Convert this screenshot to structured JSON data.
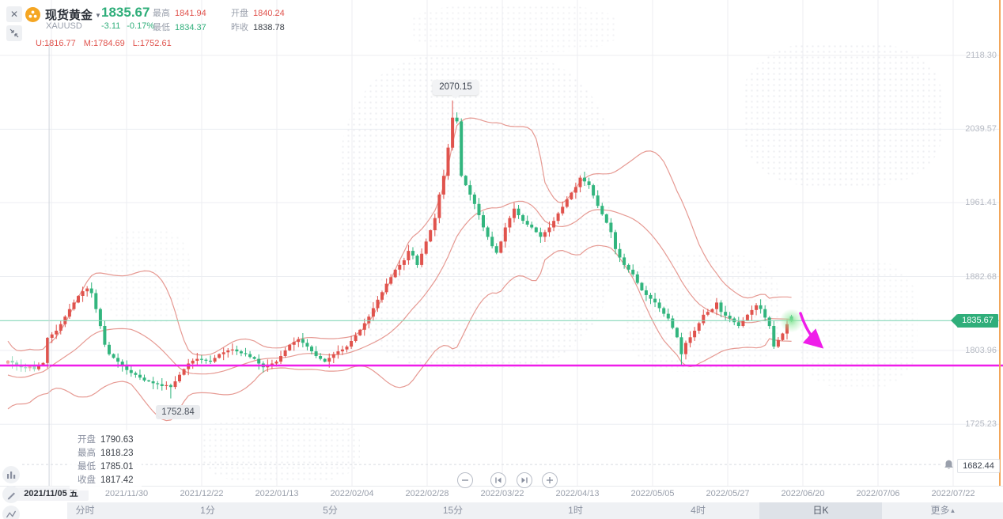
{
  "header": {
    "name": "现货黄金",
    "code": "XAUUSD",
    "price": "1835.67",
    "change": "-3.11",
    "change_pct": "-0.17%",
    "stats": [
      {
        "label": "最高",
        "value": "1841.94",
        "tone": "red"
      },
      {
        "label": "最低",
        "value": "1834.37",
        "tone": "green"
      },
      {
        "label": "开盘",
        "value": "1840.24",
        "tone": "red"
      },
      {
        "label": "昨收",
        "value": "1838.78",
        "tone": "dark"
      }
    ]
  },
  "boll": {
    "u": "U:1816.77",
    "m": "M:1784.69",
    "l": "L:1752.61"
  },
  "tooltip": {
    "rows": [
      {
        "label": "开盘",
        "value": "1790.63"
      },
      {
        "label": "最高",
        "value": "1818.23"
      },
      {
        "label": "最低",
        "value": "1785.01"
      },
      {
        "label": "收盘",
        "value": "1817.42"
      }
    ]
  },
  "price_tag": "1835.67",
  "alert_value": "1682.44",
  "annotations": {
    "high": "2070.15",
    "low": "1752.84"
  },
  "toolbar": {
    "timeframes": [
      "分时",
      "1分",
      "5分",
      "15分",
      "1时",
      "4时",
      "日K",
      "更多"
    ],
    "selected": "日K",
    "more_arrow": "▲"
  },
  "colors": {
    "up": "#e0534d",
    "down": "#32b57e",
    "band": "#e5938c",
    "accent_green": "#2fae7a",
    "magenta": "#ef1de9",
    "teal_line": "#86d7b8",
    "right_border": "#f2a65a"
  },
  "chart_data": {
    "type": "candlestick",
    "symbol": "XAUUSD",
    "period": "日K",
    "indicator": "BOLL(20,2)",
    "x_labels": [
      "2021/11/05 五",
      "2021/11/30",
      "2021/12/22",
      "2022/01/13",
      "2022/02/04",
      "2022/02/28",
      "2022/03/22",
      "2022/04/13",
      "2022/05/05",
      "2022/05/27",
      "2022/06/20",
      "2022/07/06",
      "2022/07/22"
    ],
    "y_ticks": [
      2118.3,
      2039.57,
      1961.41,
      1882.68,
      1803.96,
      1725.23
    ],
    "current_price": 1835.67,
    "alert_price": 1682.44,
    "trendline_price": 1787.9,
    "crosshair_index": 9,
    "high_point": 2070.15,
    "low_point": 1752.84,
    "pre_closes": [
      1832,
      1820,
      1806,
      1790,
      1775,
      1762,
      1752,
      1758,
      1766,
      1757,
      1750,
      1760,
      1770,
      1777,
      1784,
      1791,
      1787,
      1781,
      1786,
      1790
    ],
    "closes": [
      1793,
      1791,
      1788,
      1786,
      1785,
      1787,
      1784,
      1788,
      1790.6,
      1817.4,
      1821,
      1825,
      1832,
      1840,
      1848,
      1855,
      1862,
      1867,
      1870,
      1865,
      1848,
      1830,
      1810,
      1800,
      1796,
      1792,
      1787,
      1783,
      1780,
      1778,
      1775,
      1772,
      1771,
      1769,
      1768,
      1766,
      1767,
      1765,
      1771,
      1778,
      1784,
      1790,
      1793,
      1795,
      1794,
      1793,
      1792,
      1796,
      1800,
      1802,
      1804,
      1805,
      1803,
      1801,
      1800,
      1797,
      1795,
      1790,
      1786,
      1788,
      1790,
      1792,
      1798,
      1804,
      1810,
      1813,
      1816,
      1812,
      1808,
      1803,
      1798,
      1795,
      1792,
      1796,
      1800,
      1803,
      1805,
      1808,
      1814,
      1820,
      1826,
      1833,
      1840,
      1849,
      1858,
      1866,
      1875,
      1882,
      1890,
      1895,
      1900,
      1910,
      1905,
      1895,
      1907,
      1920,
      1932,
      1945,
      1970,
      1990,
      2020,
      2052,
      2048,
      1990,
      1980,
      1970,
      1960,
      1948,
      1935,
      1925,
      1915,
      1908,
      1920,
      1935,
      1945,
      1955,
      1948,
      1942,
      1938,
      1935,
      1930,
      1925,
      1930,
      1935,
      1942,
      1950,
      1957,
      1965,
      1972,
      1978,
      1988,
      1984,
      1980,
      1969,
      1958,
      1949,
      1940,
      1930,
      1912,
      1903,
      1895,
      1890,
      1885,
      1876,
      1868,
      1863,
      1859,
      1855,
      1849,
      1843,
      1838,
      1828,
      1818,
      1800,
      1812,
      1818,
      1825,
      1833,
      1842,
      1845,
      1848,
      1855,
      1845,
      1841,
      1838,
      1834,
      1830,
      1836,
      1842,
      1847,
      1852,
      1848,
      1839,
      1830,
      1808,
      1815,
      1822,
      1832,
      1835.67
    ],
    "overrides": {
      "9": {
        "o": 1790.63,
        "h": 1818.23,
        "l": 1785.01,
        "c": 1817.42
      },
      "37": {
        "l": 1752.84
      },
      "101": {
        "h": 2070.15
      },
      "153": {
        "l": 1787.5
      },
      "178": {
        "o": 1840.24,
        "h": 1841.94,
        "l": 1834.37,
        "c": 1835.67
      }
    }
  }
}
